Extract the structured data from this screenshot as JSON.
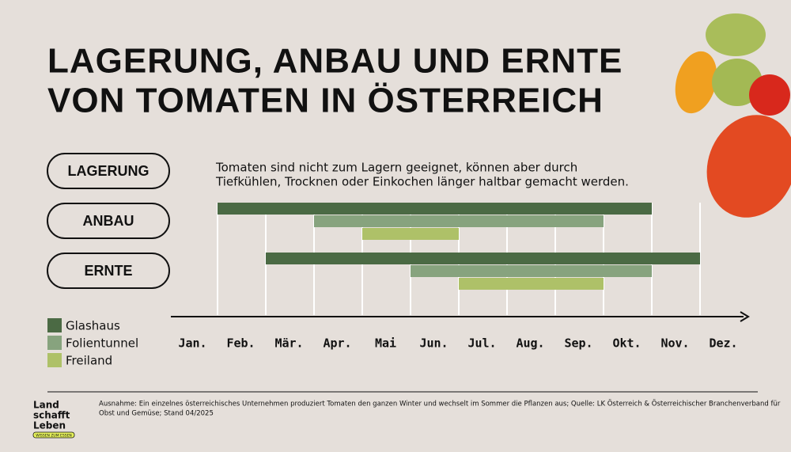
{
  "chart_data": {
    "type": "gantt",
    "title": [
      "LAGERUNG, ANBAU UND ERNTE",
      "VON TOMATEN IN ÖSTERREICH"
    ],
    "rows": [
      "LAGERUNG",
      "ANBAU",
      "ERNTE"
    ],
    "note": [
      "Tomaten sind nicht zum Lagern geeignet, können aber durch",
      "Tiefkühlen, Trocknen oder Einkochen länger haltbar gemacht werden."
    ],
    "categories": [
      "Jan.",
      "Feb.",
      "Mär.",
      "Apr.",
      "Mai",
      "Jun.",
      "Jul.",
      "Aug.",
      "Sep.",
      "Okt.",
      "Nov.",
      "Dez."
    ],
    "xlim": [
      0,
      12
    ],
    "xticks": [
      1,
      2,
      3,
      4,
      5,
      6,
      7,
      8,
      9,
      10,
      11
    ],
    "series": [
      {
        "name": "Glashaus",
        "color": "#4b6a44",
        "values": [
          null,
          [
            1,
            10
          ],
          [
            2,
            11
          ]
        ]
      },
      {
        "name": "Folientunnel",
        "color": "#87a37e",
        "values": [
          null,
          [
            3,
            9
          ],
          [
            5,
            10
          ]
        ]
      },
      {
        "name": "Freiland",
        "color": "#aec168",
        "values": [
          null,
          [
            4,
            6
          ],
          [
            6,
            9
          ]
        ]
      }
    ],
    "footnote": [
      "Ausnahme: Ein einzelnes österreichisches Unternehmen produziert Tomaten den ganzen Winter und wechselt im Sommer die Pflanzen aus; Quelle: LK Österreich & Österreichischer Branchenverband für",
      "Obst und Gemüse; Stand 04/2025"
    ],
    "logo": [
      "Land",
      "schafft",
      "Leben"
    ],
    "logo_tagline": "WISSEN ZUM ESSEN"
  }
}
